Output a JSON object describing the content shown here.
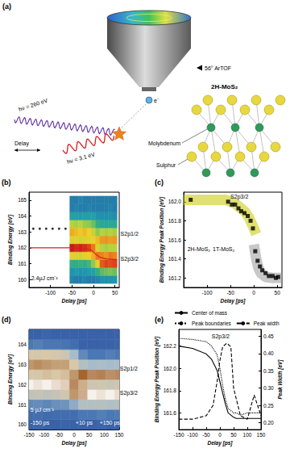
{
  "panel_a": {
    "label": "(a)",
    "detector": "56° ArTOF",
    "electron": "e⁻",
    "probe": "hν = 260 eV",
    "pump": "hν = 3.1 eV",
    "delay": "Delay",
    "sample": "2H-MoS₂",
    "atoms": [
      "Molybdenum",
      "Sulphur"
    ]
  },
  "chart_data": [
    {
      "type": "heatmap",
      "title": "(b)",
      "x_label": "Delay [ps]",
      "y_label": "Binding Energy [eV]",
      "xlim": [
        -150,
        60
      ],
      "xticks": [
        -100,
        -50,
        0,
        50
      ],
      "ylim": [
        159.5,
        165.5
      ],
      "yticks": [
        160,
        161,
        162,
        163,
        164,
        165
      ],
      "grid": false,
      "heatmap": {
        "x": [
          -50,
          -40,
          -30,
          -20,
          -10,
          0,
          10,
          20,
          30,
          40,
          50
        ],
        "y": [
          160,
          160.5,
          161,
          161.5,
          162,
          162.5,
          163,
          163.5,
          164,
          164.5,
          165
        ],
        "z": [
          [
            0.12,
            0.15,
            0.3,
            0.62,
            1.0,
            0.6,
            0.72,
            0.5,
            0.2,
            0.1,
            0.1
          ],
          [
            0.1,
            0.18,
            0.28,
            0.6,
            0.95,
            0.62,
            0.7,
            0.48,
            0.22,
            0.12,
            0.1
          ],
          [
            0.1,
            0.15,
            0.32,
            0.58,
            0.98,
            0.58,
            0.68,
            0.5,
            0.18,
            0.1,
            0.12
          ],
          [
            0.12,
            0.16,
            0.3,
            0.62,
            0.95,
            0.6,
            0.7,
            0.46,
            0.2,
            0.1,
            0.1
          ],
          [
            0.1,
            0.18,
            0.35,
            0.65,
            0.9,
            0.62,
            0.66,
            0.45,
            0.2,
            0.12,
            0.1
          ],
          [
            0.1,
            0.2,
            0.45,
            0.72,
            0.8,
            0.65,
            0.55,
            0.4,
            0.2,
            0.1,
            0.1
          ],
          [
            0.12,
            0.3,
            0.62,
            0.8,
            0.6,
            0.7,
            0.45,
            0.3,
            0.15,
            0.1,
            0.1
          ],
          [
            0.15,
            0.38,
            0.85,
            0.78,
            0.5,
            0.75,
            0.5,
            0.25,
            0.15,
            0.1,
            0.1
          ],
          [
            0.14,
            0.4,
            0.9,
            0.76,
            0.48,
            0.76,
            0.48,
            0.24,
            0.14,
            0.1,
            0.1
          ],
          [
            0.15,
            0.42,
            0.88,
            0.8,
            0.5,
            0.74,
            0.5,
            0.26,
            0.15,
            0.12,
            0.1
          ],
          [
            0.16,
            0.4,
            0.9,
            0.78,
            0.5,
            0.75,
            0.48,
            0.25,
            0.14,
            0.1,
            0.1
          ]
        ],
        "zlim": [
          0,
          1
        ],
        "colors": [
          "#2b4fa0",
          "#1f9bb0",
          "#39b27a",
          "#b9d23c",
          "#f0d028",
          "#e8601c",
          "#c81818"
        ]
      },
      "series": [
        {
          "type": "line",
          "color": "#d62020",
          "line_style": "solid",
          "x": [
            -150,
            -50,
            -20,
            -5,
            5,
            15,
            30,
            55
          ],
          "values": [
            162.0,
            162.0,
            161.95,
            161.85,
            161.6,
            161.4,
            161.3,
            161.25
          ]
        },
        {
          "type": "scatter",
          "color": "#000000",
          "marker": "circle",
          "x": [
            -140,
            -125,
            -110,
            -95,
            -80,
            -65
          ],
          "values": [
            163.2,
            163.2,
            163.2,
            163.2,
            163.2,
            163.2
          ]
        }
      ],
      "annotations": [
        {
          "text": "2.4μJ cm⁻²",
          "x": -145,
          "y": 160.1
        },
        {
          "text": "S2p1/2",
          "x": 63,
          "y": 162.9
        },
        {
          "text": "S2p3/2",
          "x": 63,
          "y": 161.3
        }
      ]
    },
    {
      "type": "scatter",
      "title": "(c)",
      "x_label": "Delay [ps]",
      "y_label": "Binding Energy Peak Position [eV]",
      "xlim": [
        -150,
        60
      ],
      "xticks": [
        -100,
        -50,
        0,
        50
      ],
      "ylim": [
        161.1,
        162.1
      ],
      "yticks": [
        161.2,
        161.4,
        161.6,
        161.8,
        {
          "value": 162,
          "label": "162.0"
        }
      ],
      "grid": false,
      "series": [
        {
          "type": "line",
          "color": "#c8c800",
          "line_style": "band",
          "x": [
            -150,
            -60,
            -40,
            -20,
            -10,
            0,
            5
          ],
          "values": [
            162.02,
            162.02,
            161.98,
            161.9,
            161.83,
            161.72,
            161.66
          ]
        },
        {
          "type": "line",
          "color": "#9a9a9a",
          "line_style": "band",
          "x": [
            0,
            5,
            10,
            15,
            25,
            40,
            60
          ],
          "values": [
            161.55,
            161.4,
            161.3,
            161.25,
            161.21,
            161.2,
            161.2
          ]
        },
        {
          "type": "scatter",
          "color": "#000000",
          "marker": "square",
          "x": [
            -135,
            -55,
            -47,
            -40,
            -33,
            -27,
            -20,
            -13,
            -7,
            -2,
            3,
            8,
            13,
            18,
            25,
            32,
            40,
            47,
            52
          ],
          "values": [
            162.02,
            162.0,
            161.97,
            161.97,
            161.93,
            161.9,
            161.88,
            161.85,
            161.8,
            161.72,
            161.48,
            161.38,
            161.32,
            161.28,
            161.25,
            161.22,
            161.22,
            161.2,
            161.21
          ]
        }
      ],
      "annotations": [
        {
          "text": "S2p3/2",
          "x": -50,
          "y": 162.05
        },
        {
          "text": "2H-MoS₂",
          "x": -142,
          "y": 161.5
        },
        {
          "text": "1T-MoS₂",
          "x": -88,
          "y": 161.5
        }
      ]
    },
    {
      "type": "heatmap",
      "title": "(d)",
      "x_label": "Delay [ps]",
      "y_label": "Binding Energy [eV]",
      "xlim": [
        -150,
        150
      ],
      "xticks": [
        -150,
        -100,
        -50,
        0,
        50,
        100,
        150
      ],
      "ylim": [
        159.75,
        164.75
      ],
      "yticks": [
        160,
        161,
        162,
        163,
        164
      ],
      "grid": false,
      "heatmap": {
        "x": [
          -150,
          -120,
          -90,
          -60,
          -30,
          0,
          30,
          60,
          90,
          120,
          150
        ],
        "y": [
          160,
          160.5,
          161,
          161.5,
          162,
          162.5,
          163,
          163.5,
          164,
          164.5
        ],
        "z": [
          [
            0.1,
            0.15,
            0.25,
            0.5,
            1.0,
            0.6,
            0.7,
            0.6,
            0.2,
            0.1
          ],
          [
            0.12,
            0.16,
            0.26,
            0.52,
            0.98,
            0.58,
            0.72,
            0.58,
            0.22,
            0.1
          ],
          [
            0.1,
            0.14,
            0.24,
            0.5,
            1.0,
            0.62,
            0.7,
            0.6,
            0.2,
            0.12
          ],
          [
            0.1,
            0.15,
            0.27,
            0.52,
            0.97,
            0.6,
            0.68,
            0.58,
            0.2,
            0.1
          ],
          [
            0.11,
            0.15,
            0.28,
            0.56,
            0.95,
            0.62,
            0.68,
            0.55,
            0.18,
            0.1
          ],
          [
            0.1,
            0.15,
            0.35,
            0.7,
            0.85,
            0.7,
            0.6,
            0.4,
            0.15,
            0.1
          ],
          [
            0.1,
            0.2,
            0.45,
            0.9,
            0.65,
            0.8,
            0.45,
            0.25,
            0.1,
            0.1
          ],
          [
            0.1,
            0.2,
            0.45,
            1.0,
            0.55,
            0.85,
            0.4,
            0.2,
            0.1,
            0.1
          ],
          [
            0.12,
            0.22,
            0.46,
            0.98,
            0.56,
            0.84,
            0.42,
            0.2,
            0.1,
            0.1
          ],
          [
            0.1,
            0.2,
            0.44,
            1.0,
            0.54,
            0.86,
            0.4,
            0.22,
            0.1,
            0.1
          ],
          [
            0.1,
            0.21,
            0.45,
            0.97,
            0.55,
            0.85,
            0.41,
            0.2,
            0.11,
            0.1
          ]
        ],
        "zlim": [
          0,
          1
        ],
        "colors": [
          "#284c9c",
          "#4a78b4",
          "#a7bccb",
          "#d9c8a8",
          "#a5652f",
          "#f6f1ea"
        ]
      },
      "annotations": [
        {
          "text": "5 μJ cm⁻²",
          "x": -145,
          "y": 160.75
        },
        {
          "text": "-150 ps",
          "x": -145,
          "y": 160.1
        },
        {
          "text": "+10 ps",
          "x": 5,
          "y": 160.1
        },
        {
          "text": "+150 ps",
          "x": 85,
          "y": 160.1
        },
        {
          "text": "S2p1/2",
          "x": 152,
          "y": 162.8
        },
        {
          "text": "S2p3/2",
          "x": 152,
          "y": 161.6
        }
      ]
    },
    {
      "type": "line",
      "title": "(e)",
      "x_label": "Delay [ps]",
      "y_label": "Binding Energy Peak Position [eV]",
      "y2_label": "Peak Width [eV]",
      "xlim": [
        -150,
        150
      ],
      "xticks": [
        -150,
        -100,
        -50,
        0,
        50,
        100,
        150
      ],
      "ylim": [
        161.45,
        162.35
      ],
      "yticks": [
        161.6,
        161.8,
        {
          "value": 162,
          "label": "162.0"
        },
        162.2
      ],
      "y2lim": [
        0.18,
        0.47
      ],
      "y2ticks": [
        {
          "value": 0.2,
          "label": "0.20"
        },
        0.25,
        {
          "value": 0.3,
          "label": "0.30"
        },
        0.35,
        {
          "value": 0.4,
          "label": "0.40"
        },
        0.45
      ],
      "grid": false,
      "legend": "top",
      "series": [
        {
          "name": "Center of mass",
          "color": "#000000",
          "line_style": "solid",
          "x": [
            -150,
            -100,
            -50,
            -30,
            -10,
            0,
            10,
            20,
            30,
            50,
            60,
            75,
            100,
            150
          ],
          "values": [
            162.2,
            162.18,
            162.13,
            162.08,
            161.98,
            161.88,
            161.78,
            161.68,
            161.6,
            161.56,
            161.55,
            161.55,
            161.55,
            161.55
          ]
        },
        {
          "name": "Peak boundaries",
          "color": "#000000",
          "line_style": "dotted",
          "x": [
            -150,
            -100,
            -50,
            -30,
            -10,
            0,
            10,
            20,
            30,
            50,
            60,
            75,
            100,
            150
          ],
          "values": [
            162.27,
            162.26,
            162.24,
            162.2,
            162.12,
            162.0,
            161.85,
            161.72,
            161.64,
            161.6,
            161.6,
            161.58,
            161.6,
            161.6
          ]
        },
        {
          "name": "Peak width",
          "color": "#000000",
          "line_style": "dashed",
          "axis": "y2",
          "x": [
            -150,
            -100,
            -50,
            -25,
            -10,
            0,
            10,
            25,
            40,
            50,
            75,
            100,
            125,
            150
          ],
          "values": [
            0.21,
            0.21,
            0.22,
            0.25,
            0.32,
            0.38,
            0.42,
            0.43,
            0.42,
            0.3,
            0.22,
            0.21,
            0.28,
            0.22
          ]
        }
      ],
      "annotations": [
        {
          "text": "S2p3/2",
          "x": -30,
          "y": 162.29
        }
      ]
    }
  ]
}
